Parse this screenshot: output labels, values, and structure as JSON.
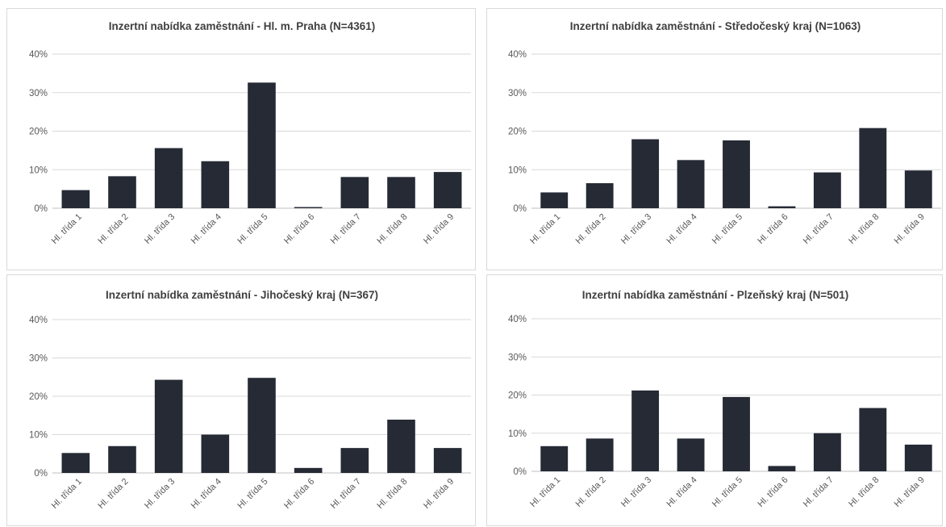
{
  "colors": {
    "bar": "#252a35",
    "grid": "#d9d9d9",
    "axis": "#bfbfbf",
    "text": "#595959",
    "title": "#3f3f3f"
  },
  "chart_data": [
    {
      "type": "bar",
      "title": "Inzertní nabídka zaměstnání - Hl. m. Praha (N=4361)",
      "categories": [
        "Hl. třída 1",
        "Hl. třída 2",
        "Hl. třída 3",
        "Hl. třída 4",
        "Hl. třída 5",
        "Hl. třída 6",
        "Hl. třída 7",
        "Hl. třída 8",
        "Hl. třída 9"
      ],
      "values": [
        4.7,
        8.3,
        15.6,
        12.2,
        32.6,
        0.3,
        8.1,
        8.1,
        9.4
      ],
      "yticks": [
        "0%",
        "10%",
        "20%",
        "30%",
        "40%"
      ],
      "ylim": [
        0,
        40
      ],
      "grid": true,
      "legend": "none"
    },
    {
      "type": "bar",
      "title": "Inzertní nabídka zaměstnání - Středočeský  kraj (N=1063)",
      "categories": [
        "Hl. třída 1",
        "Hl. třída 2",
        "Hl. třída 3",
        "Hl. třída 4",
        "Hl. třída 5",
        "Hl. třída 6",
        "Hl. třída 7",
        "Hl. třída 8",
        "Hl. třída 9"
      ],
      "values": [
        4.1,
        6.5,
        17.9,
        12.5,
        17.6,
        0.5,
        9.3,
        20.8,
        9.8
      ],
      "yticks": [
        "0%",
        "10%",
        "20%",
        "30%",
        "40%"
      ],
      "ylim": [
        0,
        40
      ],
      "grid": true,
      "legend": "none"
    },
    {
      "type": "bar",
      "title": "Inzertní nabídka zaměstnání - Jihočeský  kraj (N=367)",
      "categories": [
        "Hl. třída 1",
        "Hl. třída 2",
        "Hl. třída 3",
        "Hl. třída 4",
        "Hl. třída 5",
        "Hl. třída 6",
        "Hl. třída 7",
        "Hl. třída 8",
        "Hl. třída 9"
      ],
      "values": [
        5.2,
        7.0,
        24.3,
        10.0,
        24.8,
        1.3,
        6.5,
        13.9,
        6.5
      ],
      "yticks": [
        "0%",
        "10%",
        "20%",
        "30%",
        "40%"
      ],
      "ylim": [
        0,
        40
      ],
      "grid": true,
      "legend": "none"
    },
    {
      "type": "bar",
      "title": "Inzertní nabídka zaměstnání - Plzeňský kraj (N=501)",
      "categories": [
        "Hl. třída 1",
        "Hl. třída 2",
        "Hl. třída 3",
        "Hl. třída 4",
        "Hl. třída 5",
        "Hl. třída 6",
        "Hl. třída 7",
        "Hl. třída 8",
        "Hl. třída 9"
      ],
      "values": [
        6.6,
        8.6,
        21.2,
        8.6,
        19.5,
        1.4,
        10.0,
        16.6,
        7.0
      ],
      "yticks": [
        "0%",
        "10%",
        "20%",
        "30%",
        "40%"
      ],
      "ylim": [
        0,
        40
      ],
      "grid": true,
      "legend": "none"
    }
  ]
}
